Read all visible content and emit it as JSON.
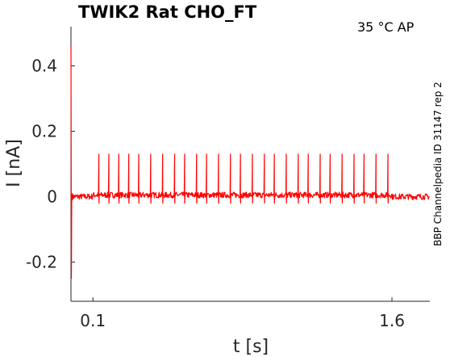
{
  "chart_data": {
    "type": "line",
    "title": "TWIK2  Rat  CHO_FT",
    "condition_label": "35 °C  AP",
    "side_label": "BBP Channelpedia ID 31147 rep 2",
    "xlabel": "t [s]",
    "ylabel": "I [nA]",
    "xlim": [
      -0.01,
      1.79
    ],
    "ylim": [
      -0.32,
      0.52
    ],
    "x_ticks": [
      {
        "value": 0.1,
        "label": "0.1"
      },
      {
        "value": 1.6,
        "label": "1.6"
      }
    ],
    "y_ticks": [
      {
        "value": 0.4,
        "label": "0.4"
      },
      {
        "value": 0.2,
        "label": "0.2"
      },
      {
        "value": 0,
        "label": "0"
      },
      {
        "value": -0.2,
        "label": "-0.2"
      }
    ],
    "grid": false,
    "series_color": "#ff0000",
    "series": [
      {
        "baseline_before": 0.0,
        "baseline_during": 0.005,
        "baseline_after": 0.0,
        "step_on": 0.1,
        "step_off": 1.6,
        "onset_transient_max": 0.46,
        "onset_transient_min": -0.25,
        "spike_peak": 0.13,
        "spike_trough": -0.02,
        "spike_times": [
          0.13,
          0.18,
          0.23,
          0.28,
          0.33,
          0.39,
          0.45,
          0.51,
          0.56,
          0.62,
          0.67,
          0.73,
          0.79,
          0.84,
          0.9,
          0.96,
          1.01,
          1.07,
          1.13,
          1.18,
          1.24,
          1.29,
          1.35,
          1.41,
          1.46,
          1.52,
          1.58
        ]
      }
    ]
  }
}
